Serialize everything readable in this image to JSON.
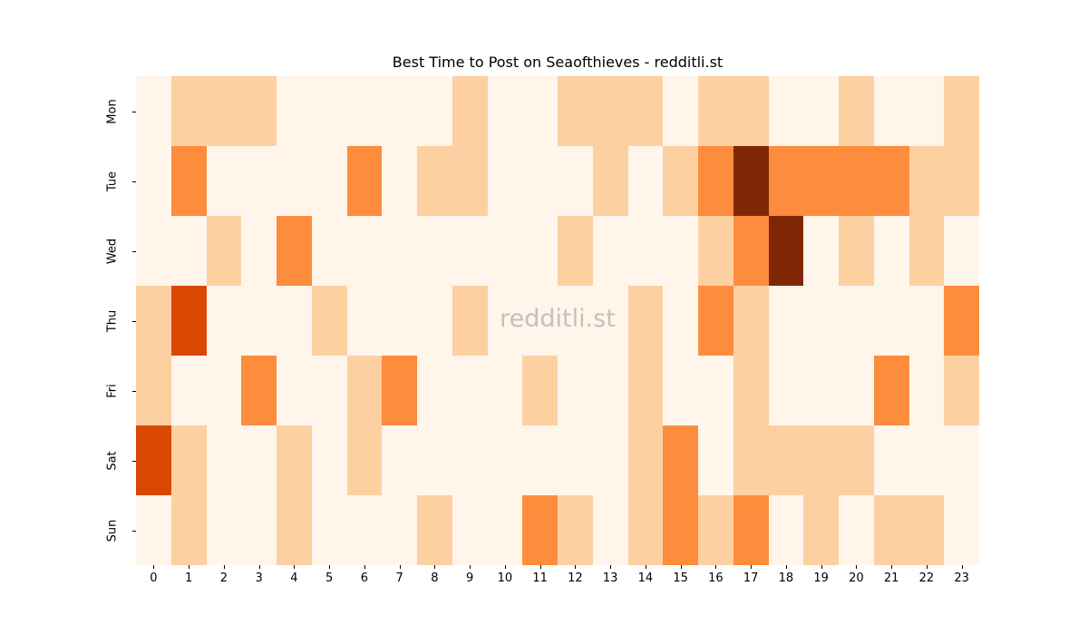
{
  "chart_data": {
    "type": "heatmap",
    "title": "Best Time to Post on Seaofthieves - redditli.st",
    "xlabel": "",
    "ylabel": "",
    "x": [
      "0",
      "1",
      "2",
      "3",
      "4",
      "5",
      "6",
      "7",
      "8",
      "9",
      "10",
      "11",
      "12",
      "13",
      "14",
      "15",
      "16",
      "17",
      "18",
      "19",
      "20",
      "21",
      "22",
      "23"
    ],
    "y": [
      "Mon",
      "Tue",
      "Wed",
      "Thu",
      "Fri",
      "Sat",
      "Sun"
    ],
    "values": [
      [
        0,
        1,
        1,
        1,
        0,
        0,
        0,
        0,
        0,
        1,
        0,
        0,
        1,
        1,
        1,
        0,
        1,
        1,
        0,
        0,
        1,
        0,
        0,
        1
      ],
      [
        0,
        2,
        0,
        0,
        0,
        0,
        2,
        0,
        1,
        1,
        0,
        0,
        0,
        1,
        0,
        1,
        2,
        4,
        2,
        2,
        2,
        2,
        1,
        1
      ],
      [
        0,
        0,
        1,
        0,
        2,
        0,
        0,
        0,
        0,
        0,
        0,
        0,
        1,
        0,
        0,
        0,
        1,
        2,
        4,
        0,
        1,
        0,
        1,
        0
      ],
      [
        1,
        3,
        0,
        0,
        0,
        1,
        0,
        0,
        0,
        1,
        0,
        0,
        0,
        0,
        1,
        0,
        2,
        1,
        0,
        0,
        0,
        0,
        0,
        2
      ],
      [
        1,
        0,
        0,
        2,
        0,
        0,
        1,
        2,
        0,
        0,
        0,
        1,
        0,
        0,
        1,
        0,
        0,
        1,
        0,
        0,
        0,
        2,
        0,
        1
      ],
      [
        3,
        1,
        0,
        0,
        1,
        0,
        1,
        0,
        0,
        0,
        0,
        0,
        0,
        0,
        1,
        2,
        0,
        1,
        1,
        1,
        1,
        0,
        0,
        0
      ],
      [
        0,
        1,
        0,
        0,
        1,
        0,
        0,
        0,
        1,
        0,
        0,
        2,
        1,
        0,
        1,
        2,
        1,
        2,
        0,
        1,
        0,
        1,
        1,
        0
      ]
    ],
    "colormap": "Oranges",
    "level_colors": [
      "#fff5eb",
      "#fdd0a2",
      "#fd8d3c",
      "#d94801",
      "#7f2704"
    ],
    "colorbar": false,
    "grid": false,
    "legend": "none"
  },
  "watermark": "redditli.st"
}
